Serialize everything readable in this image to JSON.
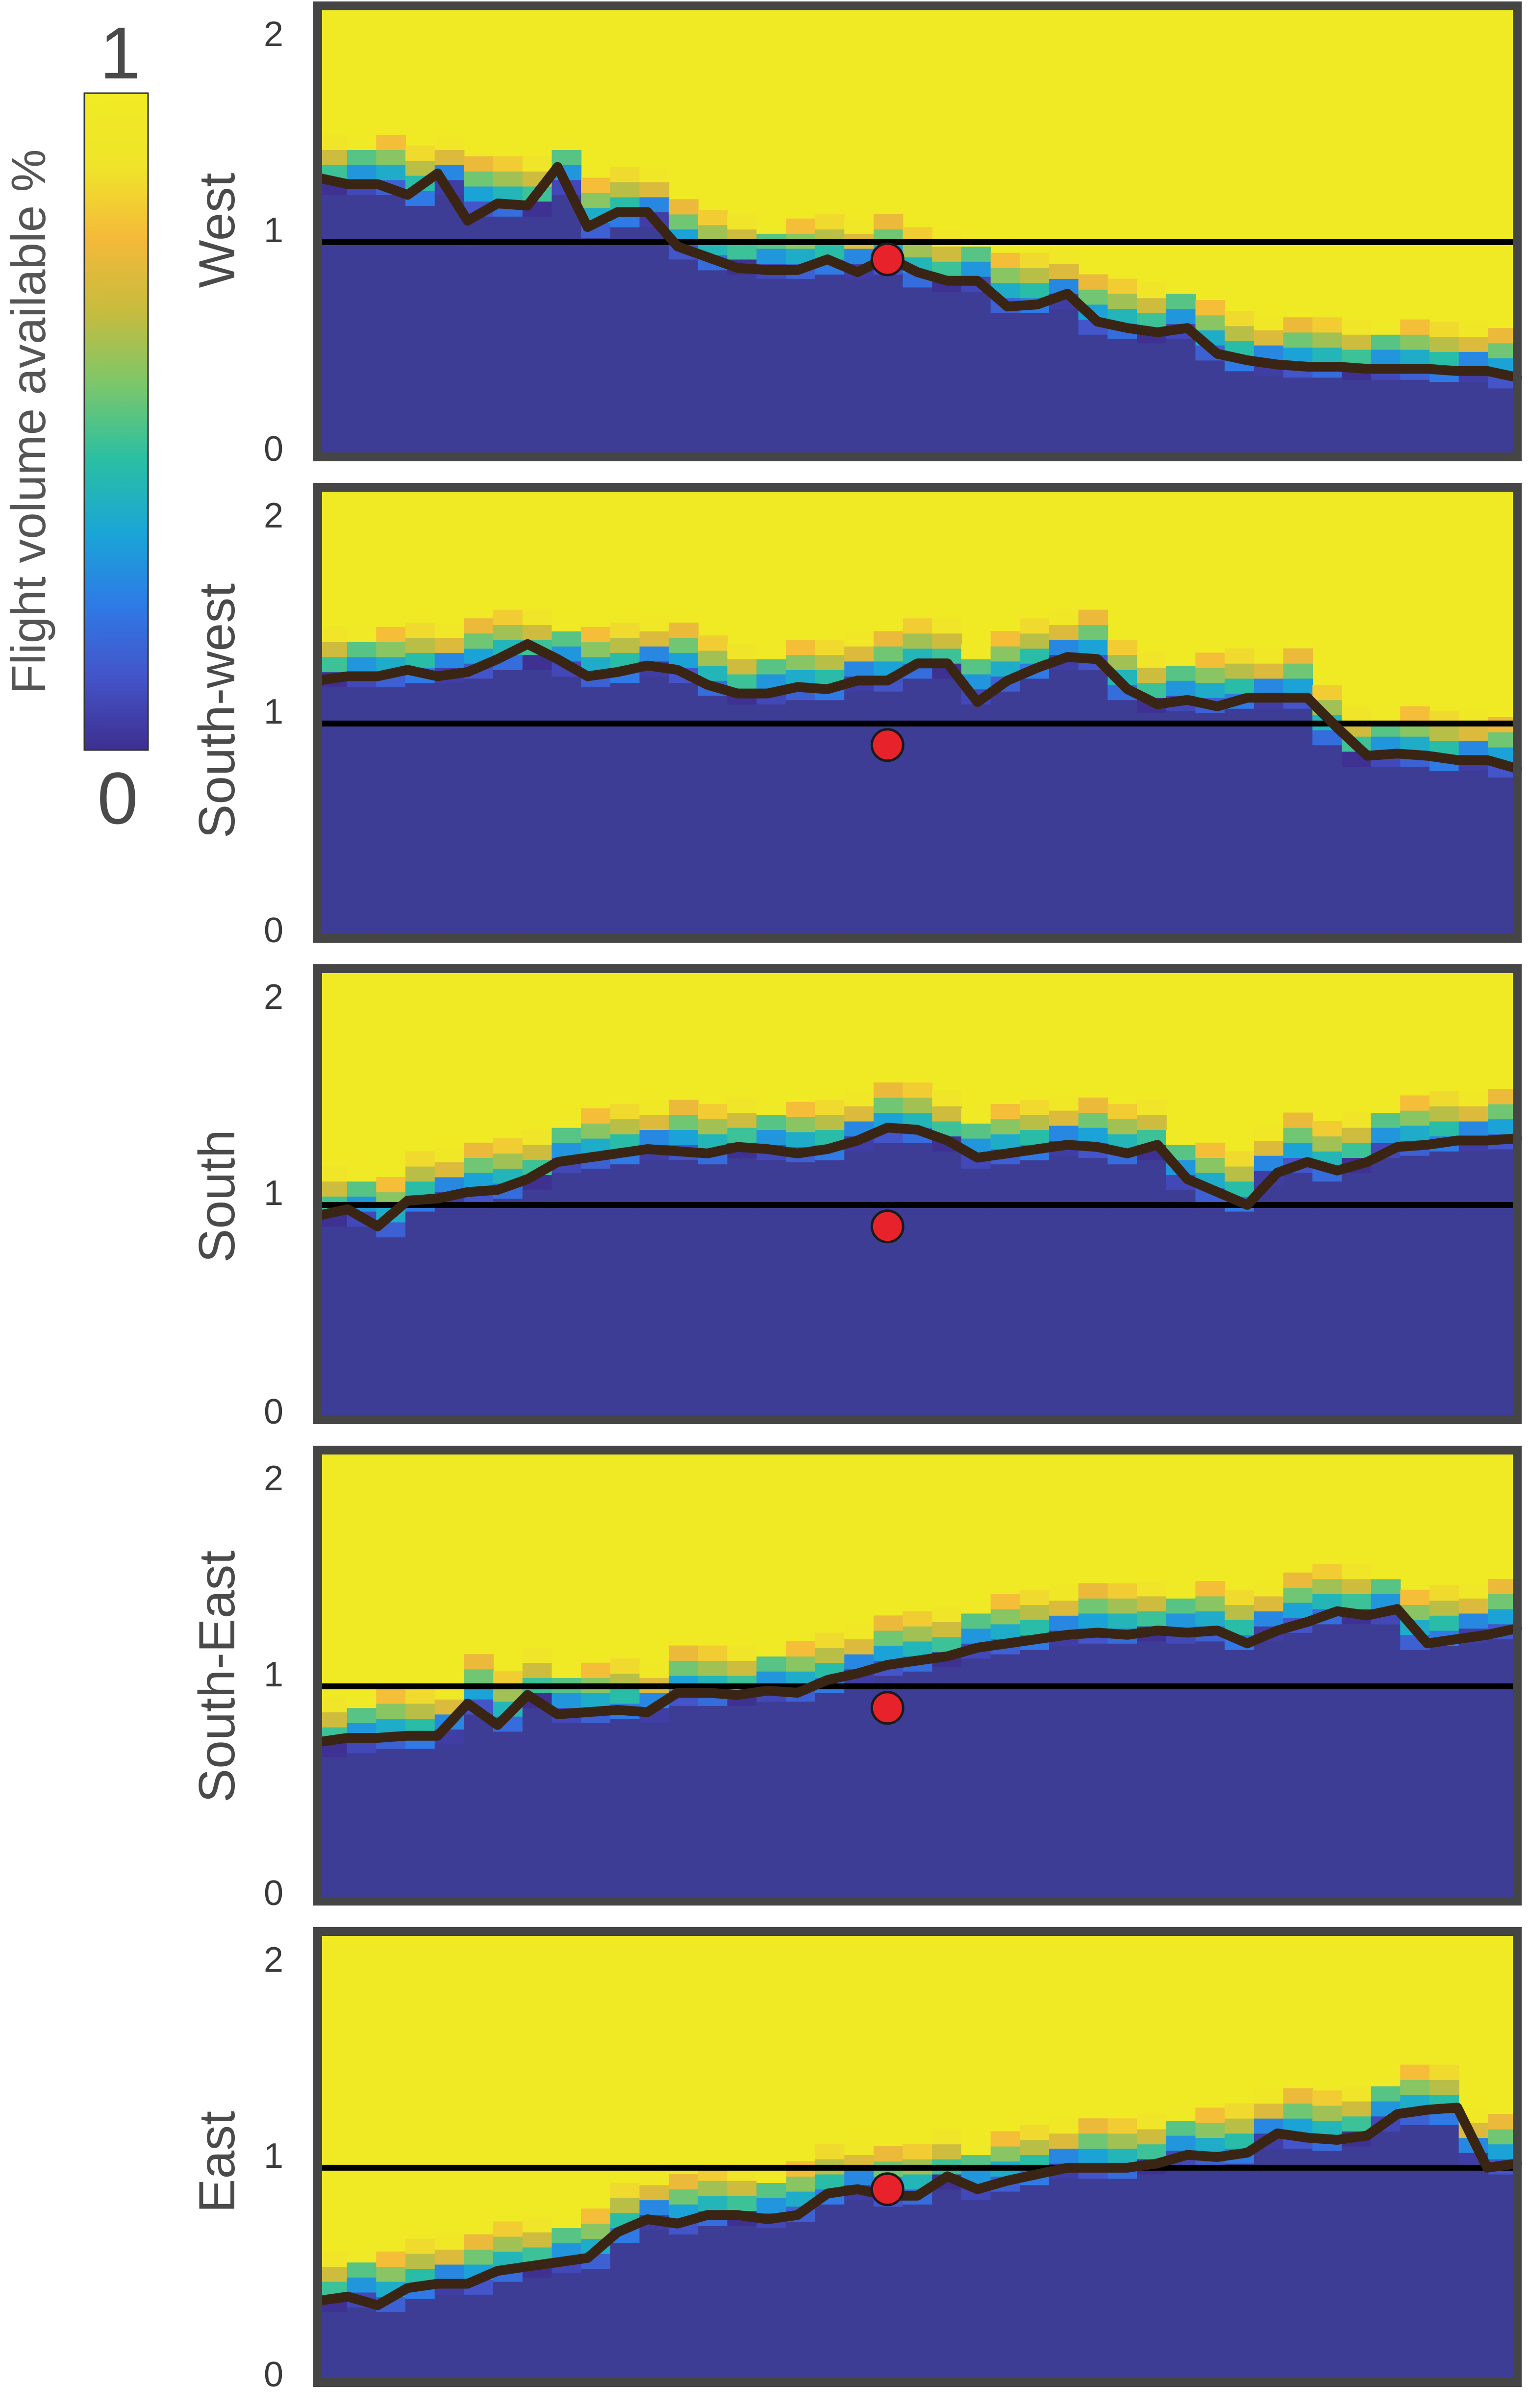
{
  "colorbar": {
    "title": "Flight volume available %",
    "max_label": "1",
    "min_label": "0",
    "colormap": [
      "#3e2f8f",
      "#4454c9",
      "#2e7be6",
      "#1aa6d6",
      "#2bbfa2",
      "#7bc76b",
      "#c6bc3e",
      "#f4b93a",
      "#f0e42a",
      "#f0eb23"
    ]
  },
  "colors": {
    "low": "#3e3d96",
    "high": "#f0ea25",
    "trace": "#3a2515",
    "reference_line": "#000000",
    "marker": "#e8222a",
    "frame": "#454545"
  },
  "chart_data": [
    {
      "type": "heatmap",
      "title": "West",
      "ylim": [
        0,
        2.1
      ],
      "yticks": [
        "0",
        "1",
        "2"
      ],
      "reference_y": 1,
      "marker": {
        "x": 0.475,
        "y": 0.92
      },
      "trace_x": [
        0,
        0.025,
        0.05,
        0.075,
        0.1,
        0.125,
        0.15,
        0.175,
        0.2,
        0.225,
        0.25,
        0.275,
        0.3,
        0.325,
        0.35,
        0.375,
        0.4,
        0.425,
        0.45,
        0.475,
        0.5,
        0.525,
        0.55,
        0.575,
        0.6,
        0.625,
        0.65,
        0.675,
        0.7,
        0.725,
        0.75,
        0.775,
        0.8,
        0.825,
        0.85,
        0.875,
        0.9,
        0.925,
        0.95,
        0.975,
        1
      ],
      "trace_y": [
        1.3,
        1.27,
        1.27,
        1.22,
        1.32,
        1.1,
        1.18,
        1.17,
        1.35,
        1.07,
        1.14,
        1.14,
        0.98,
        0.93,
        0.88,
        0.87,
        0.87,
        0.92,
        0.86,
        0.93,
        0.86,
        0.82,
        0.82,
        0.7,
        0.71,
        0.76,
        0.63,
        0.6,
        0.58,
        0.6,
        0.48,
        0.45,
        0.43,
        0.42,
        0.42,
        0.41,
        0.41,
        0.41,
        0.4,
        0.4,
        0.37
      ],
      "band_center": [
        1.27,
        1.27,
        1.27,
        1.22,
        1.27,
        1.17,
        1.17,
        1.17,
        1.27,
        1.07,
        1.12,
        1.12,
        0.97,
        0.92,
        0.9,
        0.88,
        0.88,
        0.9,
        0.88,
        0.9,
        0.84,
        0.82,
        0.82,
        0.72,
        0.72,
        0.74,
        0.62,
        0.6,
        0.58,
        0.6,
        0.5,
        0.45,
        0.43,
        0.42,
        0.42,
        0.41,
        0.41,
        0.41,
        0.4,
        0.4,
        0.37
      ]
    },
    {
      "type": "heatmap",
      "title": "South-west",
      "ylim": [
        0,
        2.1
      ],
      "yticks": [
        "0",
        "1",
        "2"
      ],
      "reference_y": 1,
      "marker": {
        "x": 0.475,
        "y": 0.9
      },
      "trace_x": [
        0,
        0.025,
        0.05,
        0.075,
        0.1,
        0.125,
        0.15,
        0.175,
        0.2,
        0.225,
        0.25,
        0.275,
        0.3,
        0.325,
        0.35,
        0.375,
        0.4,
        0.425,
        0.45,
        0.475,
        0.5,
        0.525,
        0.55,
        0.575,
        0.6,
        0.625,
        0.65,
        0.675,
        0.7,
        0.725,
        0.75,
        0.775,
        0.8,
        0.825,
        0.85,
        0.875,
        0.9,
        0.925,
        0.95,
        0.975,
        1
      ],
      "trace_y": [
        1.2,
        1.22,
        1.22,
        1.25,
        1.22,
        1.24,
        1.3,
        1.37,
        1.3,
        1.22,
        1.24,
        1.27,
        1.25,
        1.18,
        1.14,
        1.14,
        1.17,
        1.16,
        1.2,
        1.2,
        1.28,
        1.28,
        1.1,
        1.2,
        1.26,
        1.31,
        1.3,
        1.16,
        1.09,
        1.11,
        1.08,
        1.12,
        1.12,
        1.12,
        0.98,
        0.85,
        0.86,
        0.85,
        0.83,
        0.83,
        0.79
      ],
      "band_center": [
        1.22,
        1.22,
        1.22,
        1.24,
        1.24,
        1.26,
        1.3,
        1.3,
        1.27,
        1.22,
        1.24,
        1.27,
        1.24,
        1.18,
        1.14,
        1.14,
        1.16,
        1.16,
        1.2,
        1.2,
        1.26,
        1.26,
        1.14,
        1.2,
        1.26,
        1.3,
        1.3,
        1.16,
        1.1,
        1.11,
        1.1,
        1.12,
        1.12,
        1.12,
        0.95,
        0.85,
        0.85,
        0.85,
        0.83,
        0.83,
        0.8
      ]
    },
    {
      "type": "heatmap",
      "title": "South",
      "ylim": [
        0,
        2.1
      ],
      "yticks": [
        "0",
        "1",
        "2"
      ],
      "reference_y": 1,
      "marker": {
        "x": 0.475,
        "y": 0.9
      },
      "trace_x": [
        0,
        0.025,
        0.05,
        0.075,
        0.1,
        0.125,
        0.15,
        0.175,
        0.2,
        0.225,
        0.25,
        0.275,
        0.3,
        0.325,
        0.35,
        0.375,
        0.4,
        0.425,
        0.45,
        0.475,
        0.5,
        0.525,
        0.55,
        0.575,
        0.6,
        0.625,
        0.65,
        0.675,
        0.7,
        0.725,
        0.75,
        0.775,
        0.8,
        0.825,
        0.85,
        0.875,
        0.9,
        0.925,
        0.95,
        0.975,
        1
      ],
      "trace_y": [
        0.95,
        0.98,
        0.9,
        1.02,
        1.03,
        1.06,
        1.07,
        1.12,
        1.2,
        1.22,
        1.24,
        1.26,
        1.25,
        1.24,
        1.27,
        1.26,
        1.24,
        1.26,
        1.3,
        1.36,
        1.35,
        1.3,
        1.22,
        1.24,
        1.26,
        1.28,
        1.27,
        1.24,
        1.28,
        1.12,
        1.06,
        1.0,
        1.15,
        1.2,
        1.16,
        1.2,
        1.27,
        1.28,
        1.3,
        1.3,
        1.31
      ],
      "band_center": [
        0.95,
        0.95,
        0.9,
        1.02,
        1.04,
        1.06,
        1.08,
        1.12,
        1.2,
        1.22,
        1.24,
        1.26,
        1.26,
        1.24,
        1.27,
        1.26,
        1.25,
        1.26,
        1.3,
        1.34,
        1.34,
        1.3,
        1.22,
        1.24,
        1.26,
        1.28,
        1.27,
        1.24,
        1.26,
        1.12,
        1.06,
        1.02,
        1.14,
        1.2,
        1.16,
        1.2,
        1.27,
        1.28,
        1.3,
        1.3,
        1.31
      ]
    },
    {
      "type": "heatmap",
      "title": "South-East",
      "ylim": [
        0,
        2.1
      ],
      "yticks": [
        "0",
        "1",
        "2"
      ],
      "reference_y": 1,
      "marker": {
        "x": 0.475,
        "y": 0.9
      },
      "trace_x": [
        0,
        0.025,
        0.05,
        0.075,
        0.1,
        0.125,
        0.15,
        0.175,
        0.2,
        0.225,
        0.25,
        0.275,
        0.3,
        0.325,
        0.35,
        0.375,
        0.4,
        0.425,
        0.45,
        0.475,
        0.5,
        0.525,
        0.55,
        0.575,
        0.6,
        0.625,
        0.65,
        0.675,
        0.7,
        0.725,
        0.75,
        0.775,
        0.8,
        0.825,
        0.85,
        0.875,
        0.9,
        0.925,
        0.95,
        0.975,
        1
      ],
      "trace_y": [
        0.74,
        0.76,
        0.76,
        0.77,
        0.77,
        0.92,
        0.82,
        0.96,
        0.87,
        0.88,
        0.89,
        0.88,
        0.97,
        0.97,
        0.96,
        0.98,
        0.97,
        1.03,
        1.06,
        1.1,
        1.12,
        1.14,
        1.18,
        1.2,
        1.22,
        1.24,
        1.25,
        1.24,
        1.26,
        1.25,
        1.26,
        1.2,
        1.26,
        1.3,
        1.35,
        1.33,
        1.36,
        1.2,
        1.22,
        1.24,
        1.27
      ],
      "band_center": [
        0.72,
        0.74,
        0.76,
        0.76,
        0.78,
        0.92,
        0.84,
        0.95,
        0.88,
        0.88,
        0.9,
        0.88,
        0.96,
        0.96,
        0.96,
        0.98,
        0.98,
        1.02,
        1.06,
        1.1,
        1.12,
        1.14,
        1.18,
        1.2,
        1.22,
        1.24,
        1.25,
        1.25,
        1.26,
        1.25,
        1.26,
        1.22,
        1.26,
        1.3,
        1.34,
        1.34,
        1.34,
        1.22,
        1.24,
        1.25,
        1.27
      ]
    },
    {
      "type": "heatmap",
      "title": "East",
      "ylim": [
        0,
        2.1
      ],
      "yticks": [
        "0",
        "1",
        "2"
      ],
      "reference_y": 1,
      "marker": {
        "x": 0.475,
        "y": 0.9
      },
      "trace_x": [
        0,
        0.025,
        0.05,
        0.075,
        0.1,
        0.125,
        0.15,
        0.175,
        0.2,
        0.225,
        0.25,
        0.275,
        0.3,
        0.325,
        0.35,
        0.375,
        0.4,
        0.425,
        0.45,
        0.475,
        0.5,
        0.525,
        0.55,
        0.575,
        0.6,
        0.625,
        0.65,
        0.675,
        0.7,
        0.725,
        0.75,
        0.775,
        0.8,
        0.825,
        0.85,
        0.875,
        0.9,
        0.925,
        0.95,
        0.975,
        1
      ],
      "trace_y": [
        0.38,
        0.4,
        0.36,
        0.44,
        0.46,
        0.46,
        0.52,
        0.54,
        0.56,
        0.58,
        0.7,
        0.76,
        0.74,
        0.78,
        0.78,
        0.76,
        0.78,
        0.88,
        0.9,
        0.87,
        0.87,
        0.96,
        0.9,
        0.94,
        0.97,
        1.0,
        1.0,
        1.0,
        1.02,
        1.06,
        1.05,
        1.07,
        1.16,
        1.14,
        1.13,
        1.15,
        1.25,
        1.27,
        1.28,
        1.0,
        1.02
      ],
      "band_center": [
        0.38,
        0.4,
        0.38,
        0.44,
        0.46,
        0.46,
        0.52,
        0.54,
        0.56,
        0.58,
        0.7,
        0.76,
        0.74,
        0.78,
        0.78,
        0.77,
        0.8,
        0.88,
        0.9,
        0.87,
        0.88,
        0.95,
        0.9,
        0.94,
        0.97,
        1.0,
        1.0,
        1.0,
        1.02,
        1.06,
        1.05,
        1.07,
        1.14,
        1.14,
        1.13,
        1.15,
        1.22,
        1.25,
        1.25,
        1.05,
        1.02
      ]
    }
  ]
}
